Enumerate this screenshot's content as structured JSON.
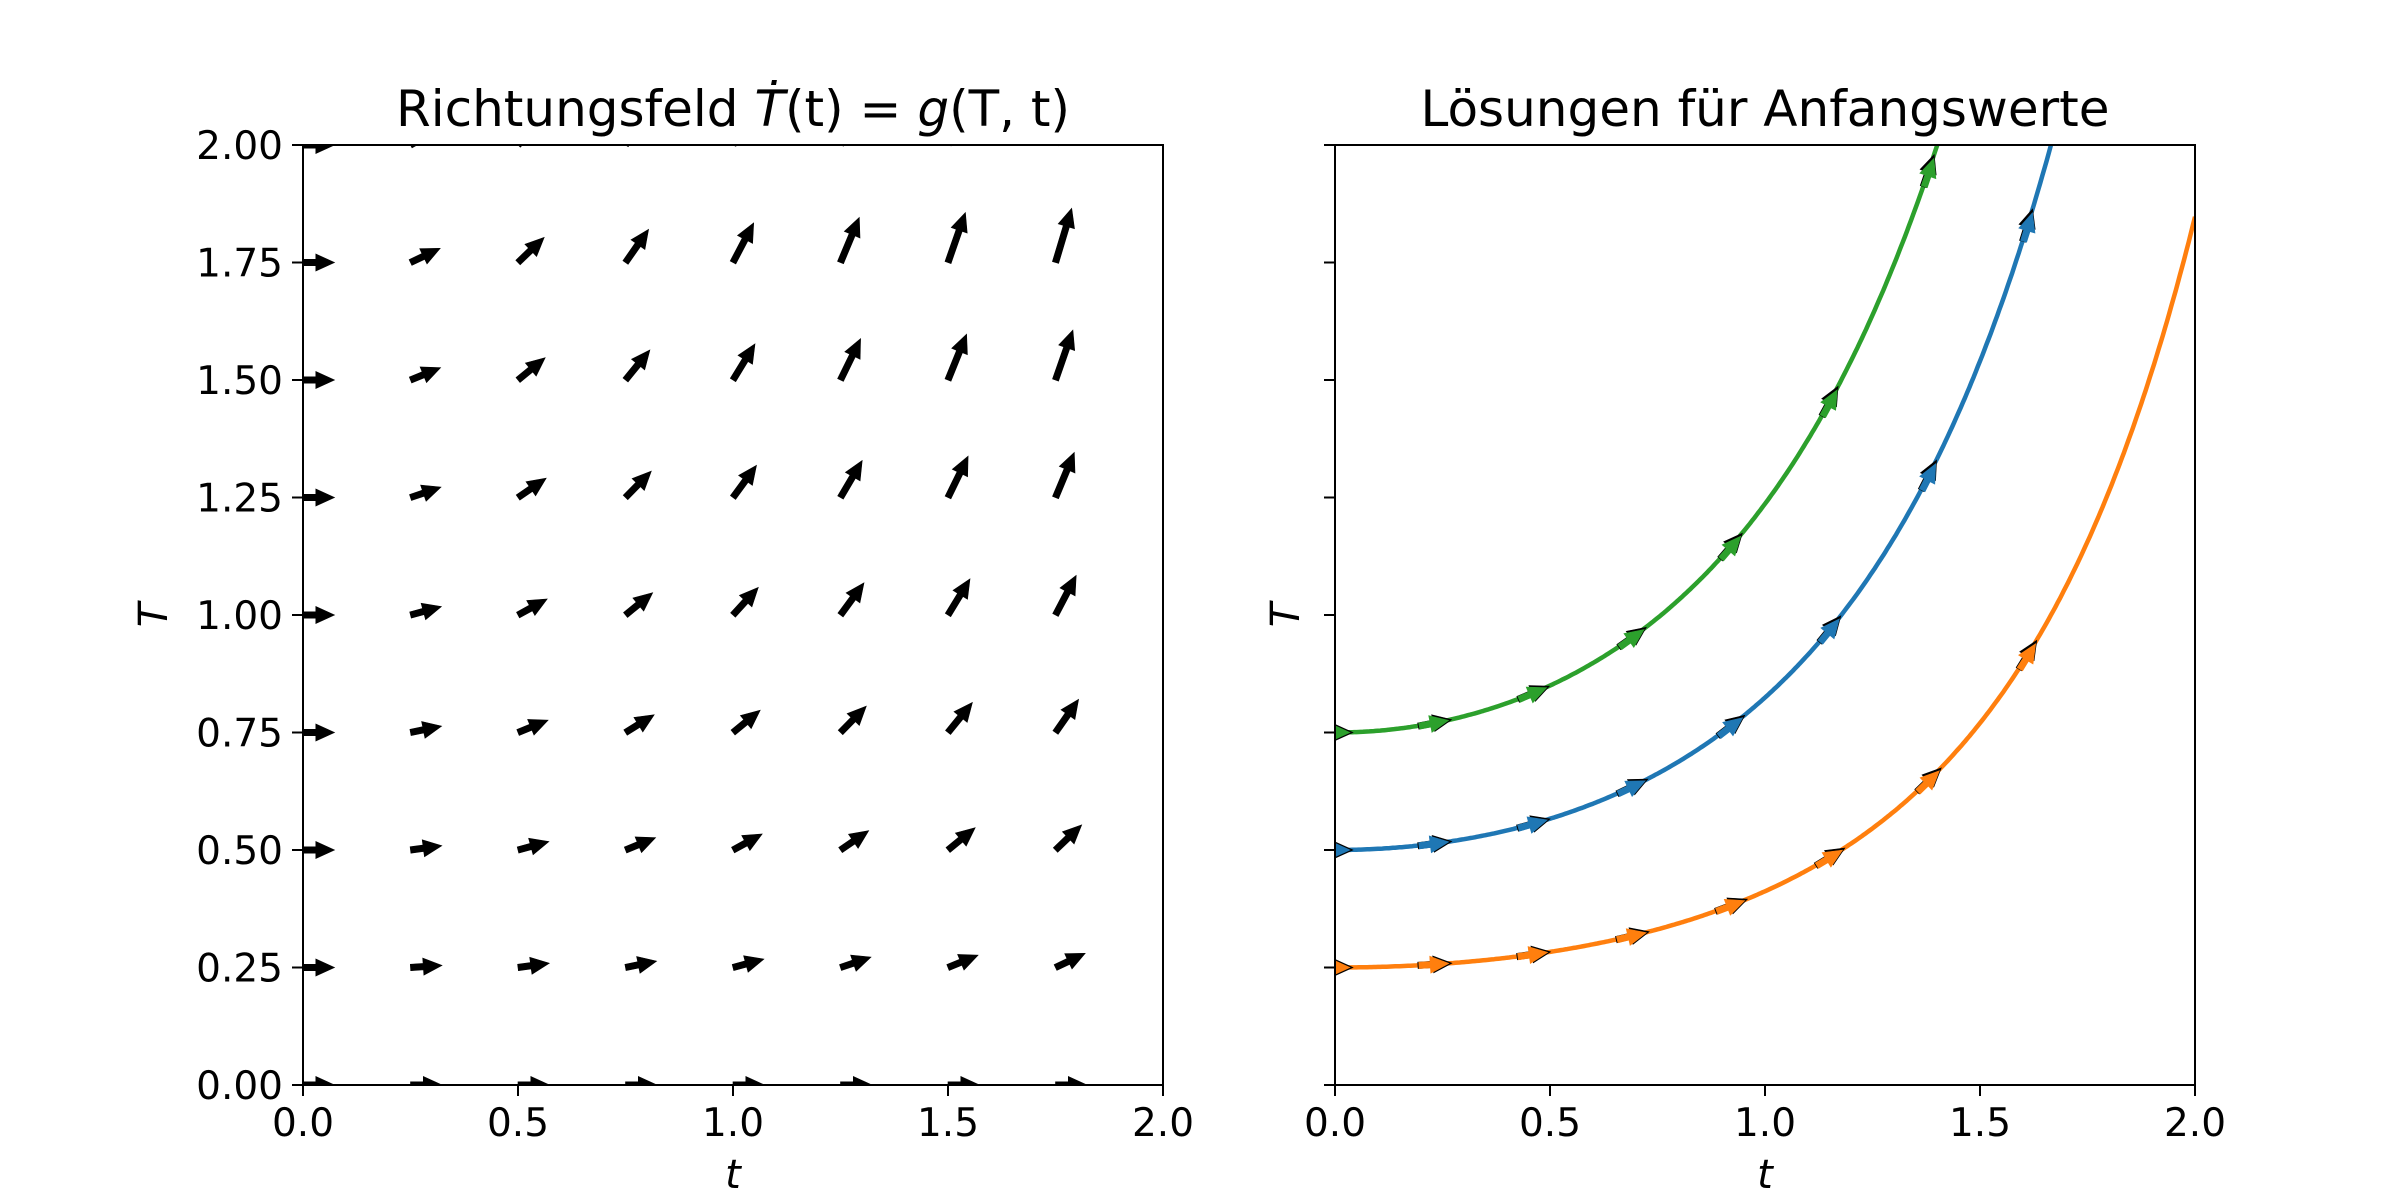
{
  "chart_data": [
    {
      "type": "quiver",
      "title": {
        "prefix": "Richtungsfeld ",
        "lhs": "Ṫ",
        "rhs_open": "(t) = ",
        "func": "g",
        "args": "(T, t)"
      },
      "xlabel": "t",
      "ylabel": "T",
      "xlim": [
        0,
        2
      ],
      "ylim": [
        0,
        2
      ],
      "xticks": [
        "0.0",
        "0.5",
        "1.0",
        "1.5",
        "2.0"
      ],
      "yticks": [
        "0.00",
        "0.25",
        "0.50",
        "0.75",
        "1.00",
        "1.25",
        "1.50",
        "1.75",
        "2.00"
      ],
      "field": "dT/dt = T·t",
      "grid_t": [
        0,
        0.25,
        0.5,
        0.75,
        1.0,
        1.25,
        1.5,
        1.75
      ],
      "grid_T": [
        0,
        0.25,
        0.5,
        0.75,
        1.0,
        1.25,
        1.5,
        1.75,
        2.0
      ],
      "arrow_color": "#000000"
    },
    {
      "type": "line",
      "title": "Lösungen für Anfangswerte",
      "xlabel": "t",
      "ylabel": "T",
      "xlim": [
        0,
        2
      ],
      "ylim": [
        0,
        2
      ],
      "xticks": [
        "0.0",
        "0.5",
        "1.0",
        "1.5",
        "2.0"
      ],
      "model": "T(t) = T0 · exp(t²/2)",
      "series": [
        {
          "T0": 0.25,
          "color": "#ff7f0e"
        },
        {
          "T0": 0.5,
          "color": "#1f77b4"
        },
        {
          "T0": 0.75,
          "color": "#2ca02c"
        }
      ],
      "tangent_arrows": "along each curve, dT/dt = T·t"
    }
  ]
}
